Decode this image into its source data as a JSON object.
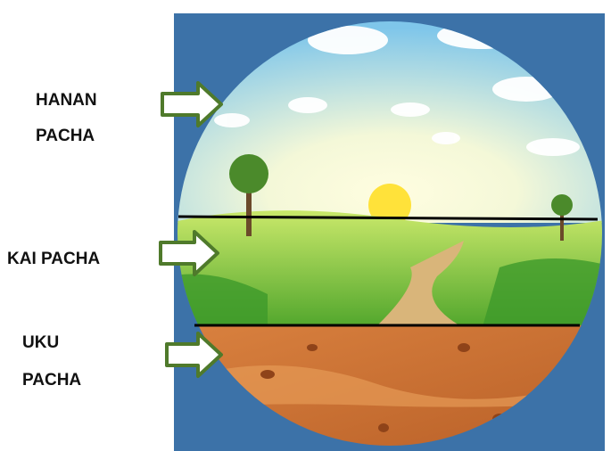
{
  "labels": [
    {
      "lines": [
        "HANAN",
        "PACHA"
      ]
    },
    {
      "lines": [
        "KAI PACHA"
      ]
    },
    {
      "lines": [
        "UKU",
        "PACHA"
      ]
    }
  ]
}
